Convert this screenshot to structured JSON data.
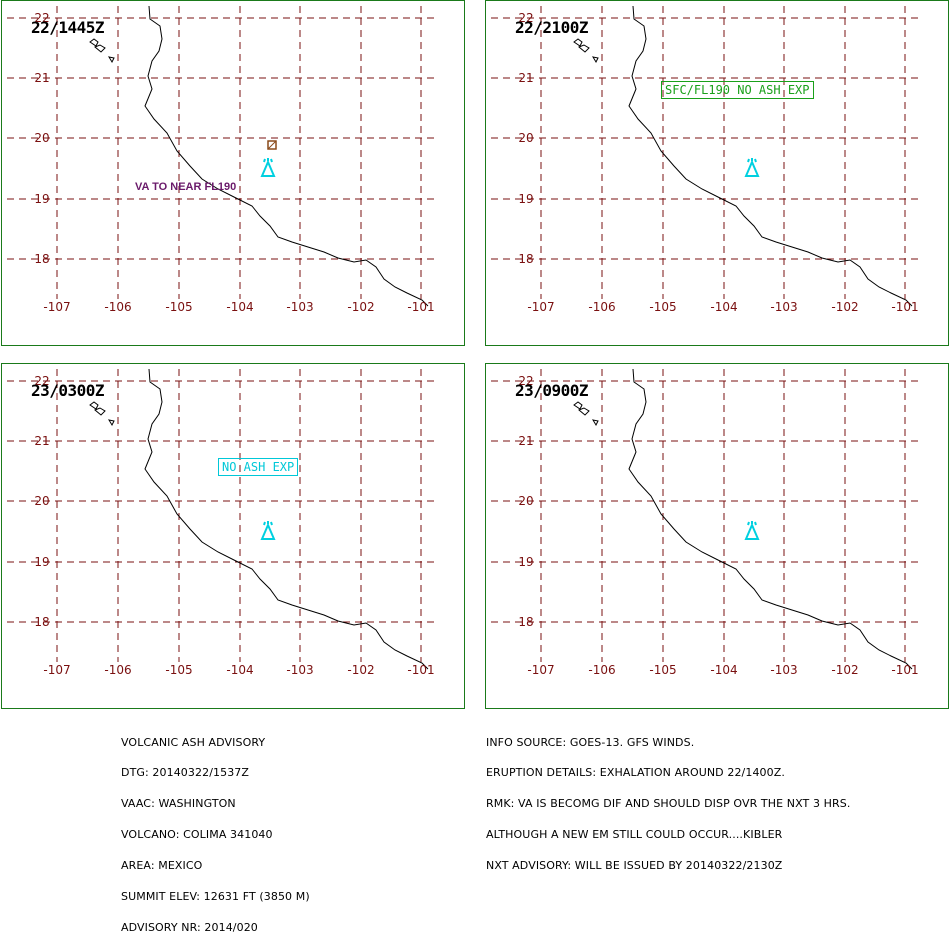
{
  "panels": [
    {
      "time": "22/1445Z",
      "annotation": "VA TO NEAR FL190",
      "boxed": null
    },
    {
      "time": "22/2100Z",
      "annotation": null,
      "boxed": "SFC/FL190 NO ASH EXP"
    },
    {
      "time": "23/0300Z",
      "annotation": null,
      "boxed": "NO ASH EXP"
    },
    {
      "time": "23/0900Z",
      "annotation": null,
      "boxed": null
    }
  ],
  "axes": {
    "lon_labels": [
      "-107",
      "-106",
      "-105",
      "-104",
      "-103",
      "-102",
      "-101"
    ],
    "lat_labels": [
      "22",
      "21",
      "20",
      "19",
      "18"
    ]
  },
  "colors": {
    "frame": "#1a7a1a",
    "grid": "#7a1010",
    "volcano": "#00d0e0",
    "va_text": "#6a1a6a",
    "green_box": "#1aa01a",
    "cyan_box": "#00c8d8",
    "obs_marker": "#8a4a1a"
  },
  "advisory_left": [
    "VOLCANIC ASH ADVISORY",
    "DTG: 20140322/1537Z",
    "VAAC: WASHINGTON",
    "VOLCANO: COLIMA 341040",
    "AREA: MEXICO",
    "SUMMIT ELEV: 12631 FT (3850 M)",
    "ADVISORY NR: 2014/020"
  ],
  "advisory_right": [
    "INFO SOURCE: GOES-13. GFS WINDS.",
    "ERUPTION DETAILS: EXHALATION AROUND 22/1400Z.",
    "RMK: VA IS BECOMG DIF AND SHOULD DISP OVR THE NXT 3 HRS.",
    "ALTHOUGH A NEW EM STILL COULD OCCUR....KIBLER",
    "NXT ADVISORY: WILL BE ISSUED BY 20140322/2130Z"
  ]
}
